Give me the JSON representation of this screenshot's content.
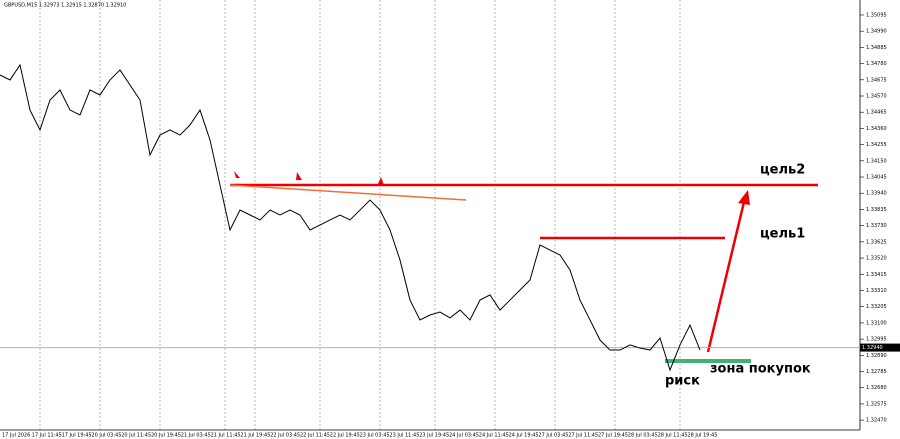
{
  "chart_data": {
    "type": "line",
    "title": "GBPUSD,M15  1.32973 1.32915 1.32870 1.32910",
    "series": [
      {
        "name": "GBPUSD,M15",
        "color": "#000000",
        "values": [
          1.34706,
          1.34674,
          1.34771,
          1.34479,
          1.3435,
          1.34544,
          1.34609,
          1.34479,
          1.34447,
          1.34609,
          1.34577,
          1.34674,
          1.34739,
          1.34641,
          1.34544,
          1.34188,
          1.34317,
          1.3435,
          1.34317,
          1.34382,
          1.34479,
          1.34285,
          1.33993,
          1.33702,
          1.33831,
          1.33799,
          1.33767,
          1.33831,
          1.33799,
          1.33831,
          1.33799,
          1.33702,
          1.33734,
          1.33767,
          1.33799,
          1.33767,
          1.33831,
          1.33896,
          1.33831,
          1.33702,
          1.33507,
          1.33248,
          1.33119,
          1.33151,
          1.3317,
          1.33132,
          1.33183,
          1.33119,
          1.33248,
          1.33281,
          1.33183,
          1.33248,
          1.33313,
          1.33378,
          1.33605,
          1.33572,
          1.3354,
          1.33443,
          1.33248,
          1.33119,
          1.32989,
          1.32924,
          1.32924,
          1.32957,
          1.32937,
          1.32924,
          1.33002,
          1.32795,
          1.32957,
          1.33086,
          1.32924
        ]
      }
    ],
    "ylim": [
      1.32406,
      1.35192
    ],
    "yticks": [
      {
        "value": 1.35095,
        "label": "1.35095"
      },
      {
        "value": 1.3499,
        "label": "1.34990"
      },
      {
        "value": 1.34885,
        "label": "1.34885"
      },
      {
        "value": 1.3478,
        "label": "1.34780"
      },
      {
        "value": 1.34675,
        "label": "1.34675"
      },
      {
        "value": 1.3457,
        "label": "1.34570"
      },
      {
        "value": 1.34465,
        "label": "1.34465"
      },
      {
        "value": 1.3436,
        "label": "1.34360"
      },
      {
        "value": 1.34255,
        "label": "1.34255"
      },
      {
        "value": 1.3415,
        "label": "1.34150"
      },
      {
        "value": 1.34045,
        "label": "1.34045"
      },
      {
        "value": 1.3394,
        "label": "1.33940"
      },
      {
        "value": 1.33835,
        "label": "1.33835"
      },
      {
        "value": 1.3373,
        "label": "1.33730"
      },
      {
        "value": 1.33625,
        "label": "1.33625"
      },
      {
        "value": 1.3352,
        "label": "1.33520"
      },
      {
        "value": 1.33415,
        "label": "1.33415"
      },
      {
        "value": 1.3331,
        "label": "1.33310"
      },
      {
        "value": 1.33205,
        "label": "1.33205"
      },
      {
        "value": 1.331,
        "label": "1.33100"
      },
      {
        "value": 1.32995,
        "label": "1.32995"
      },
      {
        "value": 1.3289,
        "label": "1.32890"
      },
      {
        "value": 1.32785,
        "label": "1.32785"
      },
      {
        "value": 1.3268,
        "label": "1.32680"
      },
      {
        "value": 1.32575,
        "label": "1.32575"
      },
      {
        "value": 1.3247,
        "label": "1.32470"
      }
    ],
    "current_price": {
      "value": 1.3294,
      "label": "1.32940"
    },
    "x_labels": [
      "17 Jul 2026",
      "17 Jul 11:45",
      "17 Jul 19:45",
      "20 Jul 03:45",
      "20 Jul 11:45",
      "20 Jul 19:45",
      "21 Jul 03:45",
      "21 Jul 11:45",
      "21 Jul 19:45",
      "22 Jul 03:45",
      "22 Jul 11:45",
      "22 Jul 19:45",
      "23 Jul 03:45",
      "23 Jul 11:45",
      "23 Jul 19:45",
      "24 Jul 03:45",
      "24 Jul 11:45",
      "24 Jul 19:45",
      "27 Jul 03:45",
      "27 Jul 11:45",
      "27 Jul 19:45",
      "28 Jul 03:45",
      "28 Jul 11:45",
      "28 Jul 19:45"
    ],
    "annotations": {
      "target2": "цель2",
      "target1": "цель1",
      "buy_zone": "зона покупок",
      "risk": "риск"
    }
  }
}
